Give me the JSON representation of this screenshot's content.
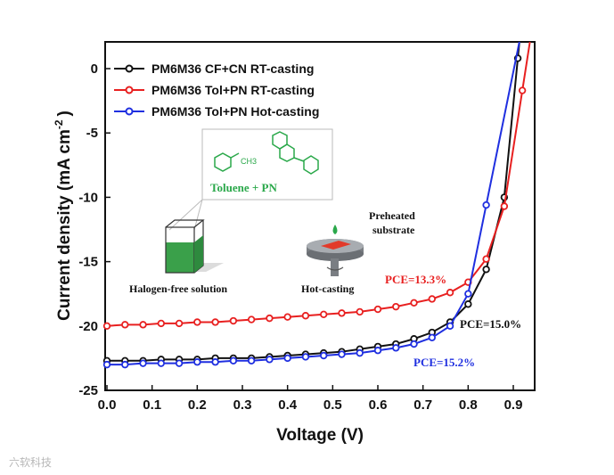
{
  "chart_data": {
    "type": "line",
    "xlabel": "Voltage (V)",
    "ylabel_main": "Current density (mA cm",
    "ylabel_sup": "-2",
    "ylabel_end": ")",
    "xlim": [
      0.0,
      0.95
    ],
    "ylim": [
      -25,
      2
    ],
    "xticks": [
      "0.0",
      "0.1",
      "0.2",
      "0.3",
      "0.4",
      "0.5",
      "0.6",
      "0.7",
      "0.8",
      "0.9"
    ],
    "yticks": [
      "0",
      "-5",
      "-10",
      "-15",
      "-20",
      "-25"
    ],
    "legend_position": "top-left",
    "series": [
      {
        "name": "PM6M36 CF+CN RT-casting",
        "color": "#111111",
        "x": [
          0.0,
          0.04,
          0.08,
          0.12,
          0.16,
          0.2,
          0.24,
          0.28,
          0.32,
          0.36,
          0.4,
          0.44,
          0.48,
          0.52,
          0.56,
          0.6,
          0.64,
          0.68,
          0.72,
          0.76,
          0.8,
          0.84,
          0.88,
          0.91
        ],
        "y": [
          -22.7,
          -22.7,
          -22.7,
          -22.6,
          -22.6,
          -22.6,
          -22.5,
          -22.5,
          -22.5,
          -22.4,
          -22.3,
          -22.2,
          -22.1,
          -22.0,
          -21.8,
          -21.6,
          -21.4,
          -21.0,
          -20.5,
          -19.7,
          -18.3,
          -15.6,
          -10.0,
          0.8
        ]
      },
      {
        "name": "PM6M36 Tol+PN RT-casting",
        "color": "#e82020",
        "x": [
          0.0,
          0.04,
          0.08,
          0.12,
          0.16,
          0.2,
          0.24,
          0.28,
          0.32,
          0.36,
          0.4,
          0.44,
          0.48,
          0.52,
          0.56,
          0.6,
          0.64,
          0.68,
          0.72,
          0.76,
          0.8,
          0.84,
          0.88,
          0.92
        ],
        "y": [
          -20.0,
          -19.9,
          -19.9,
          -19.8,
          -19.8,
          -19.7,
          -19.7,
          -19.6,
          -19.5,
          -19.4,
          -19.3,
          -19.2,
          -19.1,
          -19.0,
          -18.9,
          -18.7,
          -18.5,
          -18.2,
          -17.9,
          -17.4,
          -16.6,
          -14.8,
          -10.7,
          -1.7
        ]
      },
      {
        "name": "PM6M36 Tol+PN Hot-casting",
        "color": "#1f2fe0",
        "x": [
          0.0,
          0.04,
          0.08,
          0.12,
          0.16,
          0.2,
          0.24,
          0.28,
          0.32,
          0.36,
          0.4,
          0.44,
          0.48,
          0.52,
          0.56,
          0.6,
          0.64,
          0.68,
          0.72,
          0.76,
          0.8,
          0.84
        ],
        "y": [
          -23.0,
          -23.0,
          -22.9,
          -22.9,
          -22.9,
          -22.8,
          -22.8,
          -22.7,
          -22.7,
          -22.6,
          -22.5,
          -22.4,
          -22.3,
          -22.2,
          -22.1,
          -21.9,
          -21.7,
          -21.4,
          -20.9,
          -20.0,
          -17.5,
          -10.6
        ]
      }
    ],
    "annotations": [
      {
        "text": "PCE=13.3%",
        "color": "#e82020"
      },
      {
        "text": "PCE=15.0%",
        "color": "#111111"
      },
      {
        "text": "PCE=15.2%",
        "color": "#1f2fe0"
      }
    ]
  },
  "inset": {
    "chem_label": "Toluene + PN",
    "ch3_label": "CH3",
    "solution_label": "Halogen-free solution",
    "hotcast_label": "Hot-casting",
    "substrate_label_1": "Preheated",
    "substrate_label_2": "substrate"
  },
  "watermark": "六软科技"
}
